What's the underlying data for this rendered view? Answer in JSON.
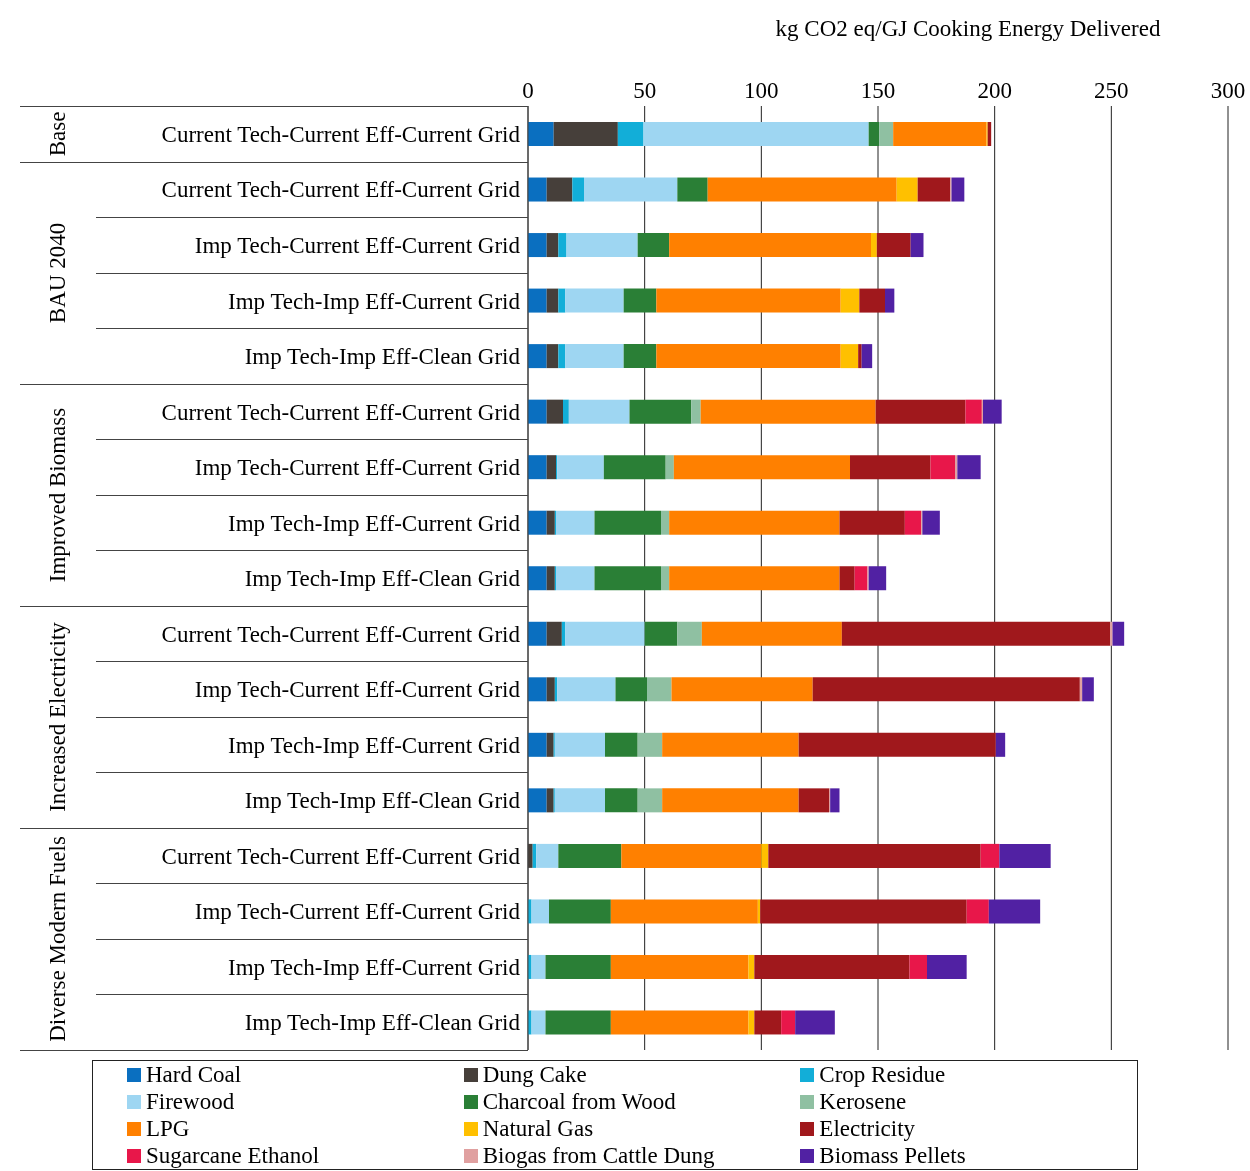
{
  "chart_data": {
    "type": "bar",
    "orientation": "horizontal",
    "stacked": true,
    "xlabel": "kg CO2 eq/GJ Cooking Energy Delivered",
    "annotations": [
      "Base",
      "BAU 2040",
      "Improved Biomass",
      "Increased Electricity",
      "Diverse Modern Fuels"
    ],
    "categories": [
      "Current Tech-Current Eff-Current Grid",
      "Current Tech-Current Eff-Current Grid",
      "Imp Tech-Current Eff-Current Grid",
      "Imp Tech-Imp Eff-Current Grid",
      "Imp Tech-Imp Eff-Clean Grid",
      "Current Tech-Current Eff-Current Grid",
      "Imp Tech-Current Eff-Current Grid",
      "Imp Tech-Imp Eff-Current Grid",
      "Imp Tech-Imp Eff-Clean Grid",
      "Current Tech-Current Eff-Current Grid",
      "Imp Tech-Current Eff-Current Grid",
      "Imp Tech-Imp Eff-Current Grid",
      "Imp Tech-Imp Eff-Clean Grid",
      "Current Tech-Current Eff-Current Grid",
      "Imp Tech-Current Eff-Current Grid",
      "Imp Tech-Imp Eff-Current Grid",
      "Imp Tech-Imp Eff-Clean Grid"
    ],
    "series": [
      {
        "name": "Hard Coal",
        "color": "#0a6fc0",
        "values": [
          11,
          8,
          8,
          8,
          8,
          8,
          8,
          8,
          8,
          8,
          8,
          8,
          8,
          0,
          0,
          0,
          0
        ]
      },
      {
        "name": "Dung Cake",
        "color": "#463f3a",
        "values": [
          27.5,
          11,
          5,
          5,
          5,
          7,
          4,
          3.5,
          3.5,
          6.5,
          3.5,
          3,
          3,
          2,
          0,
          0,
          0
        ]
      },
      {
        "name": "Crop Residue",
        "color": "#12aed8",
        "values": [
          11,
          5,
          3.5,
          3,
          3,
          2.5,
          0.5,
          0.5,
          0.5,
          1.5,
          1,
          0.5,
          0.5,
          1.5,
          1.5,
          1.5,
          1.5
        ]
      },
      {
        "name": "Firewood",
        "color": "#9ed6f2",
        "values": [
          96.5,
          40,
          30.5,
          25,
          25,
          26,
          20,
          16.5,
          16.5,
          34,
          25,
          21.5,
          21.5,
          9.5,
          7.5,
          6,
          6
        ]
      },
      {
        "name": "Charcoal from Wood",
        "color": "#2a7f36",
        "values": [
          4.5,
          13,
          13.5,
          14,
          14,
          26.5,
          26.5,
          28.5,
          28.5,
          14,
          13.5,
          14,
          14,
          27,
          26.5,
          28,
          28
        ]
      },
      {
        "name": "Kerosene",
        "color": "#8fc0a2",
        "values": [
          6,
          0,
          0,
          0,
          0,
          4,
          3.5,
          3.5,
          3.5,
          10.5,
          10.5,
          10.5,
          10.5,
          0,
          0,
          0,
          0
        ]
      },
      {
        "name": "LPG",
        "color": "#ff8000",
        "values": [
          40,
          81,
          86.5,
          79,
          79,
          75,
          75.5,
          73,
          73,
          60,
          60.5,
          58.5,
          58.5,
          60,
          63,
          59,
          59
        ]
      },
      {
        "name": "Natural Gas",
        "color": "#ffc000",
        "values": [
          0.5,
          9,
          2.5,
          8,
          7.5,
          0,
          0,
          0,
          0,
          0,
          0,
          0,
          0,
          3,
          1,
          2.5,
          2.5
        ]
      },
      {
        "name": "Electricity",
        "color": "#a0181c",
        "values": [
          1.5,
          14,
          14.5,
          11,
          1.5,
          38.5,
          34.5,
          28,
          6.5,
          115,
          114.5,
          84.5,
          13,
          91,
          88.5,
          66.5,
          11.5
        ]
      },
      {
        "name": "Sugarcane Ethanol",
        "color": "#e8174a",
        "values": [
          0,
          0,
          0,
          0,
          0,
          7,
          10.5,
          7,
          5.5,
          0,
          0,
          0,
          0,
          8,
          9.5,
          7.5,
          6
        ]
      },
      {
        "name": "Biogas from Cattle Dung",
        "color": "#e0a0a0",
        "values": [
          0,
          0.5,
          0,
          0,
          0,
          0.5,
          1,
          0.5,
          0.5,
          1,
          1,
          0,
          0.5,
          0,
          0,
          0,
          0
        ]
      },
      {
        "name": "Biomass Pellets",
        "color": "#5121a3",
        "values": [
          0,
          5.5,
          5.5,
          4,
          4.5,
          8,
          10,
          7.5,
          7.5,
          5,
          5,
          4,
          4,
          22,
          22,
          17,
          17
        ]
      }
    ],
    "xlim": [
      0,
      300
    ],
    "xticks": [
      0,
      50,
      100,
      150,
      200,
      250,
      300
    ],
    "grid": "x",
    "legend": "bottom"
  }
}
